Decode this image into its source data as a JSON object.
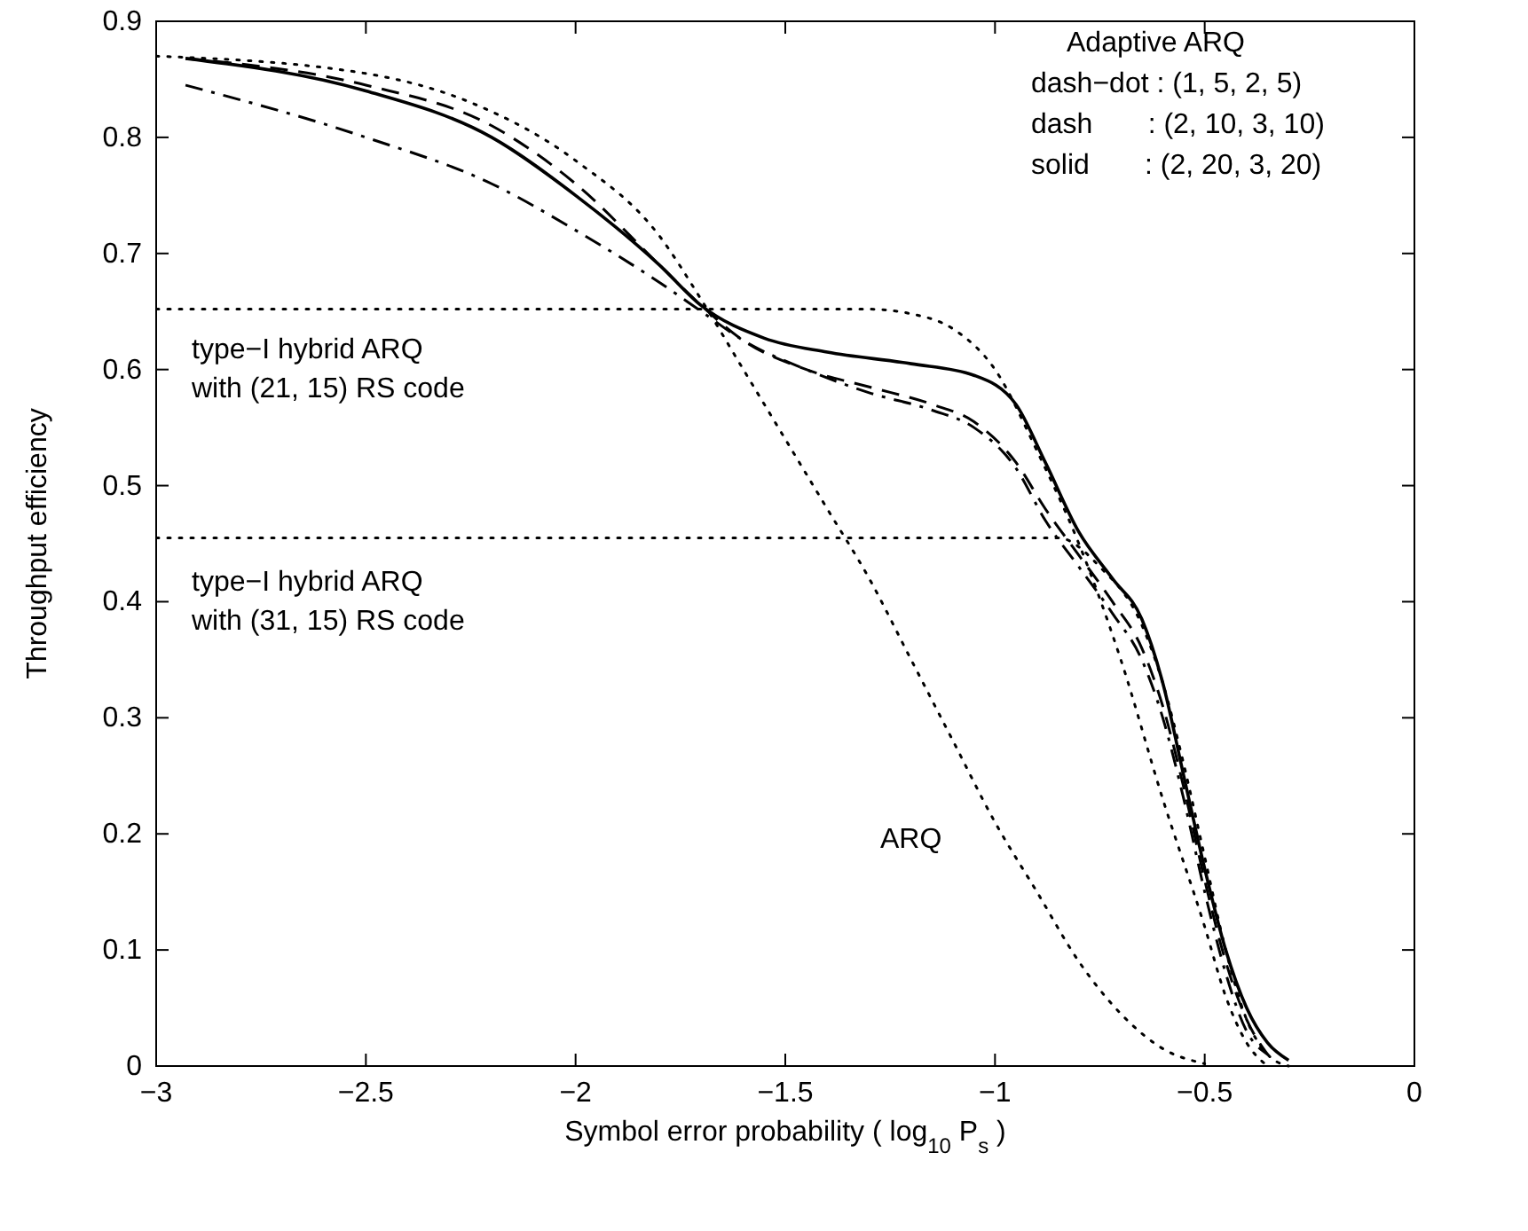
{
  "chart_data": {
    "type": "line",
    "xlabel": "Symbol error probability ( log$_{10}$ P$_{s}$ )",
    "ylabel": "Throughput efficiency",
    "xlim": [
      -3,
      0
    ],
    "ylim": [
      0,
      0.9
    ],
    "xticks": [
      {
        "value": -3,
        "label": "−3"
      },
      {
        "value": -2.5,
        "label": "−2.5"
      },
      {
        "value": -2,
        "label": "−2"
      },
      {
        "value": -1.5,
        "label": "−1.5"
      },
      {
        "value": -1,
        "label": "−1"
      },
      {
        "value": -0.5,
        "label": "−0.5"
      },
      0
    ],
    "yticks": [
      0,
      0.1,
      0.2,
      0.3,
      0.4,
      0.5,
      0.6,
      0.7,
      0.8,
      0.9
    ],
    "grid": false,
    "marker": "none",
    "series": [
      {
        "color": "#000000",
        "line_style": "solid",
        "x": [
          -2.93,
          -2.5,
          -2.2,
          -2.0,
          -1.8,
          -1.7,
          -1.55,
          -1.4,
          -1.2,
          -1.05,
          -0.95,
          -0.88,
          -0.8,
          -0.72,
          -0.65,
          -0.6,
          -0.55,
          -0.5,
          -0.45,
          -0.4,
          -0.35,
          -0.3
        ],
        "values": [
          0.868,
          0.84,
          0.8,
          0.75,
          0.69,
          0.655,
          0.627,
          0.615,
          0.605,
          0.595,
          0.57,
          0.52,
          0.46,
          0.42,
          0.385,
          0.33,
          0.25,
          0.17,
          0.1,
          0.05,
          0.02,
          0.005
        ]
      },
      {
        "color": "#000000",
        "line_style": "dashed",
        "x": [
          -2.93,
          -2.5,
          -2.2,
          -2.0,
          -1.8,
          -1.7,
          -1.6,
          -1.45,
          -1.3,
          -1.15,
          -1.05,
          -0.95,
          -0.88,
          -0.8,
          -0.72,
          -0.65,
          -0.6,
          -0.55,
          -0.5,
          -0.45,
          -0.4,
          -0.35
        ],
        "values": [
          0.868,
          0.845,
          0.81,
          0.76,
          0.69,
          0.655,
          0.625,
          0.6,
          0.585,
          0.57,
          0.555,
          0.52,
          0.48,
          0.44,
          0.4,
          0.36,
          0.31,
          0.24,
          0.16,
          0.09,
          0.04,
          0.01
        ]
      },
      {
        "color": "#000000",
        "line_style": "dashdot",
        "x": [
          -2.93,
          -2.5,
          -2.2,
          -2.0,
          -1.8,
          -1.7,
          -1.6,
          -1.45,
          -1.3,
          -1.15,
          -1.05,
          -0.95,
          -0.88,
          -0.8,
          -0.72,
          -0.65,
          -0.6,
          -0.55,
          -0.5,
          -0.45,
          -0.4,
          -0.35
        ],
        "values": [
          0.845,
          0.8,
          0.76,
          0.72,
          0.675,
          0.65,
          0.625,
          0.6,
          0.58,
          0.565,
          0.55,
          0.515,
          0.47,
          0.43,
          0.39,
          0.35,
          0.3,
          0.23,
          0.15,
          0.08,
          0.03,
          0.01
        ]
      },
      {
        "color": "#000000",
        "line_style": "dotted",
        "x": [
          -3,
          -2.5,
          -2.25,
          -2.0,
          -1.8,
          -1.7,
          -1.6,
          -1.5,
          -1.4,
          -1.3,
          -1.2,
          -1.1,
          -1.0,
          -0.9,
          -0.8,
          -0.7,
          -0.6,
          -0.5
        ],
        "values": [
          0.87,
          0.855,
          0.83,
          0.78,
          0.715,
          0.66,
          0.6,
          0.54,
          0.48,
          0.42,
          0.35,
          0.28,
          0.21,
          0.15,
          0.09,
          0.045,
          0.015,
          0.002
        ]
      },
      {
        "color": "#000000",
        "line_style": "dotted",
        "x": [
          -3,
          -1.3,
          -1.2,
          -1.1,
          -1.0,
          -0.9,
          -0.8,
          -0.7,
          -0.6,
          -0.5,
          -0.45,
          -0.4,
          -0.35
        ],
        "values": [
          0.652,
          0.652,
          0.648,
          0.635,
          0.6,
          0.53,
          0.45,
          0.35,
          0.23,
          0.12,
          0.06,
          0.02,
          0
        ]
      },
      {
        "color": "#000000",
        "line_style": "dotted",
        "x": [
          -3,
          -0.85,
          -0.75,
          -0.65,
          -0.6,
          -0.55,
          -0.5,
          -0.45,
          -0.4,
          -0.35,
          -0.3
        ],
        "values": [
          0.455,
          0.455,
          0.43,
          0.38,
          0.33,
          0.26,
          0.18,
          0.1,
          0.04,
          0.01,
          0
        ]
      }
    ],
    "annotations": [
      "Adaptive ARQ",
      "dash−dot : (1, 5, 2, 5)",
      "dash       : (2, 10, 3, 10)",
      "solid       : (2, 20, 3, 20)",
      "type−I hybrid ARQ\nwith (21, 15) RS code",
      "type−I hybrid ARQ\nwith (31, 15) RS code",
      "ARQ"
    ]
  }
}
